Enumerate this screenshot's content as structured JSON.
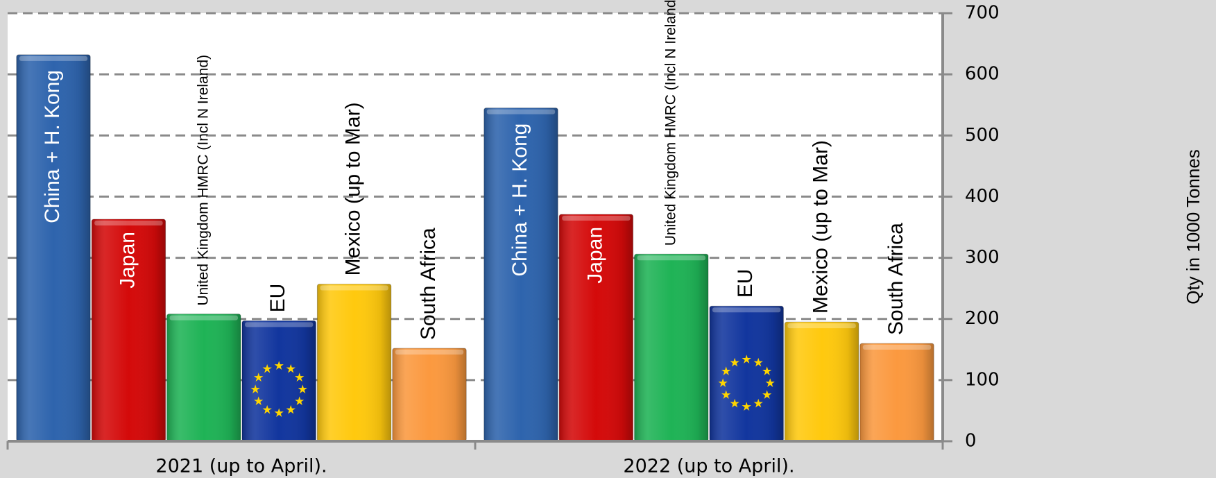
{
  "chart_data": {
    "type": "bar",
    "categories": [
      "2021 (up to April).",
      "2022 (up to April)."
    ],
    "series": [
      {
        "name": "China + H. Kong",
        "values": [
          632,
          545
        ],
        "color": "#2e64ad",
        "label_color": "#ffffff"
      },
      {
        "name": "Japan",
        "values": [
          363,
          371
        ],
        "color": "#d40a0a",
        "label_color": "#ffffff"
      },
      {
        "name": "United Kingdom HMRC (Incl N Ireland)",
        "values": [
          208,
          306
        ],
        "color": "#1fb356",
        "label_color": "#000000"
      },
      {
        "name": "EU",
        "values": [
          197,
          221
        ],
        "color": "#12369e",
        "label_color": "#000000"
      },
      {
        "name": "Mexico (up to Mar)",
        "values": [
          257,
          195
        ],
        "color": "#ffc90e",
        "label_color": "#000000"
      },
      {
        "name": "South Africa",
        "values": [
          152,
          160
        ],
        "color": "#fb993f",
        "label_color": "#000000"
      }
    ],
    "ylabel": "Qty in 1000 Tonnes",
    "ylim": [
      0,
      700
    ],
    "yticks": [
      0,
      100,
      200,
      300,
      400,
      500,
      600,
      700
    ],
    "grid": true,
    "axis_side": "right",
    "legend": "none"
  }
}
